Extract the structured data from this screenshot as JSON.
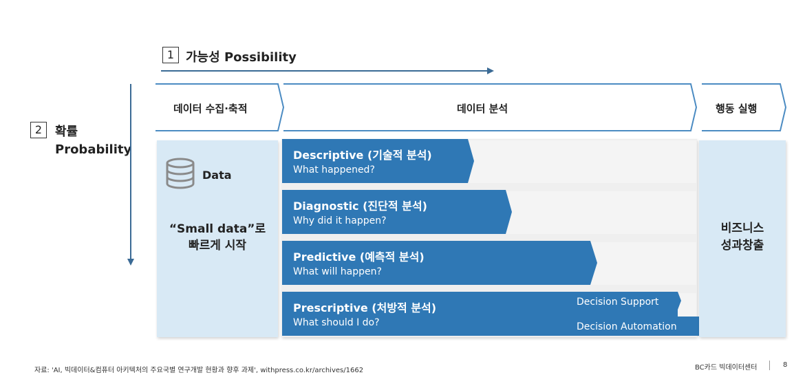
{
  "axis_possibility": {
    "number": "1",
    "label": "가능성 Possibility"
  },
  "axis_probability": {
    "number": "2",
    "label_ko": "확률",
    "label_en": "Probability"
  },
  "stages": {
    "collect": "데이터 수집·축적",
    "analyze": "데이터 분석",
    "act": "행동 실행"
  },
  "data_panel": {
    "icon": "database-icon",
    "title": "Data",
    "line1": "“Small data”로",
    "line2": "빠르게 시작"
  },
  "analytics": [
    {
      "title": "Descriptive (기술적 분석)",
      "subtitle": "What happened?"
    },
    {
      "title": "Diagnostic (진단적 분석)",
      "subtitle": "Why did it happen?"
    },
    {
      "title": "Predictive (예측적 분석)",
      "subtitle": "What will happen?"
    },
    {
      "title": "Prescriptive (처방적 분석)",
      "subtitle": "What should I do?"
    }
  ],
  "prescriptive_levels": {
    "support": "Decision Support",
    "automation": "Decision Automation"
  },
  "outcome": {
    "line1": "비즈니스",
    "line2": "성과창출"
  },
  "footer": {
    "source": "자료: 'AI, 빅데이터&컴퓨터 아키텍처의 주요국별 연구개발 현황과 향후 과제',  withpress.co.kr/archives/1662",
    "brand": "BC카드 빅데이터센터",
    "page": "8"
  },
  "colors": {
    "band": "#2f78b5",
    "panel": "#d8e9f5",
    "arrow": "#3a6a95"
  }
}
